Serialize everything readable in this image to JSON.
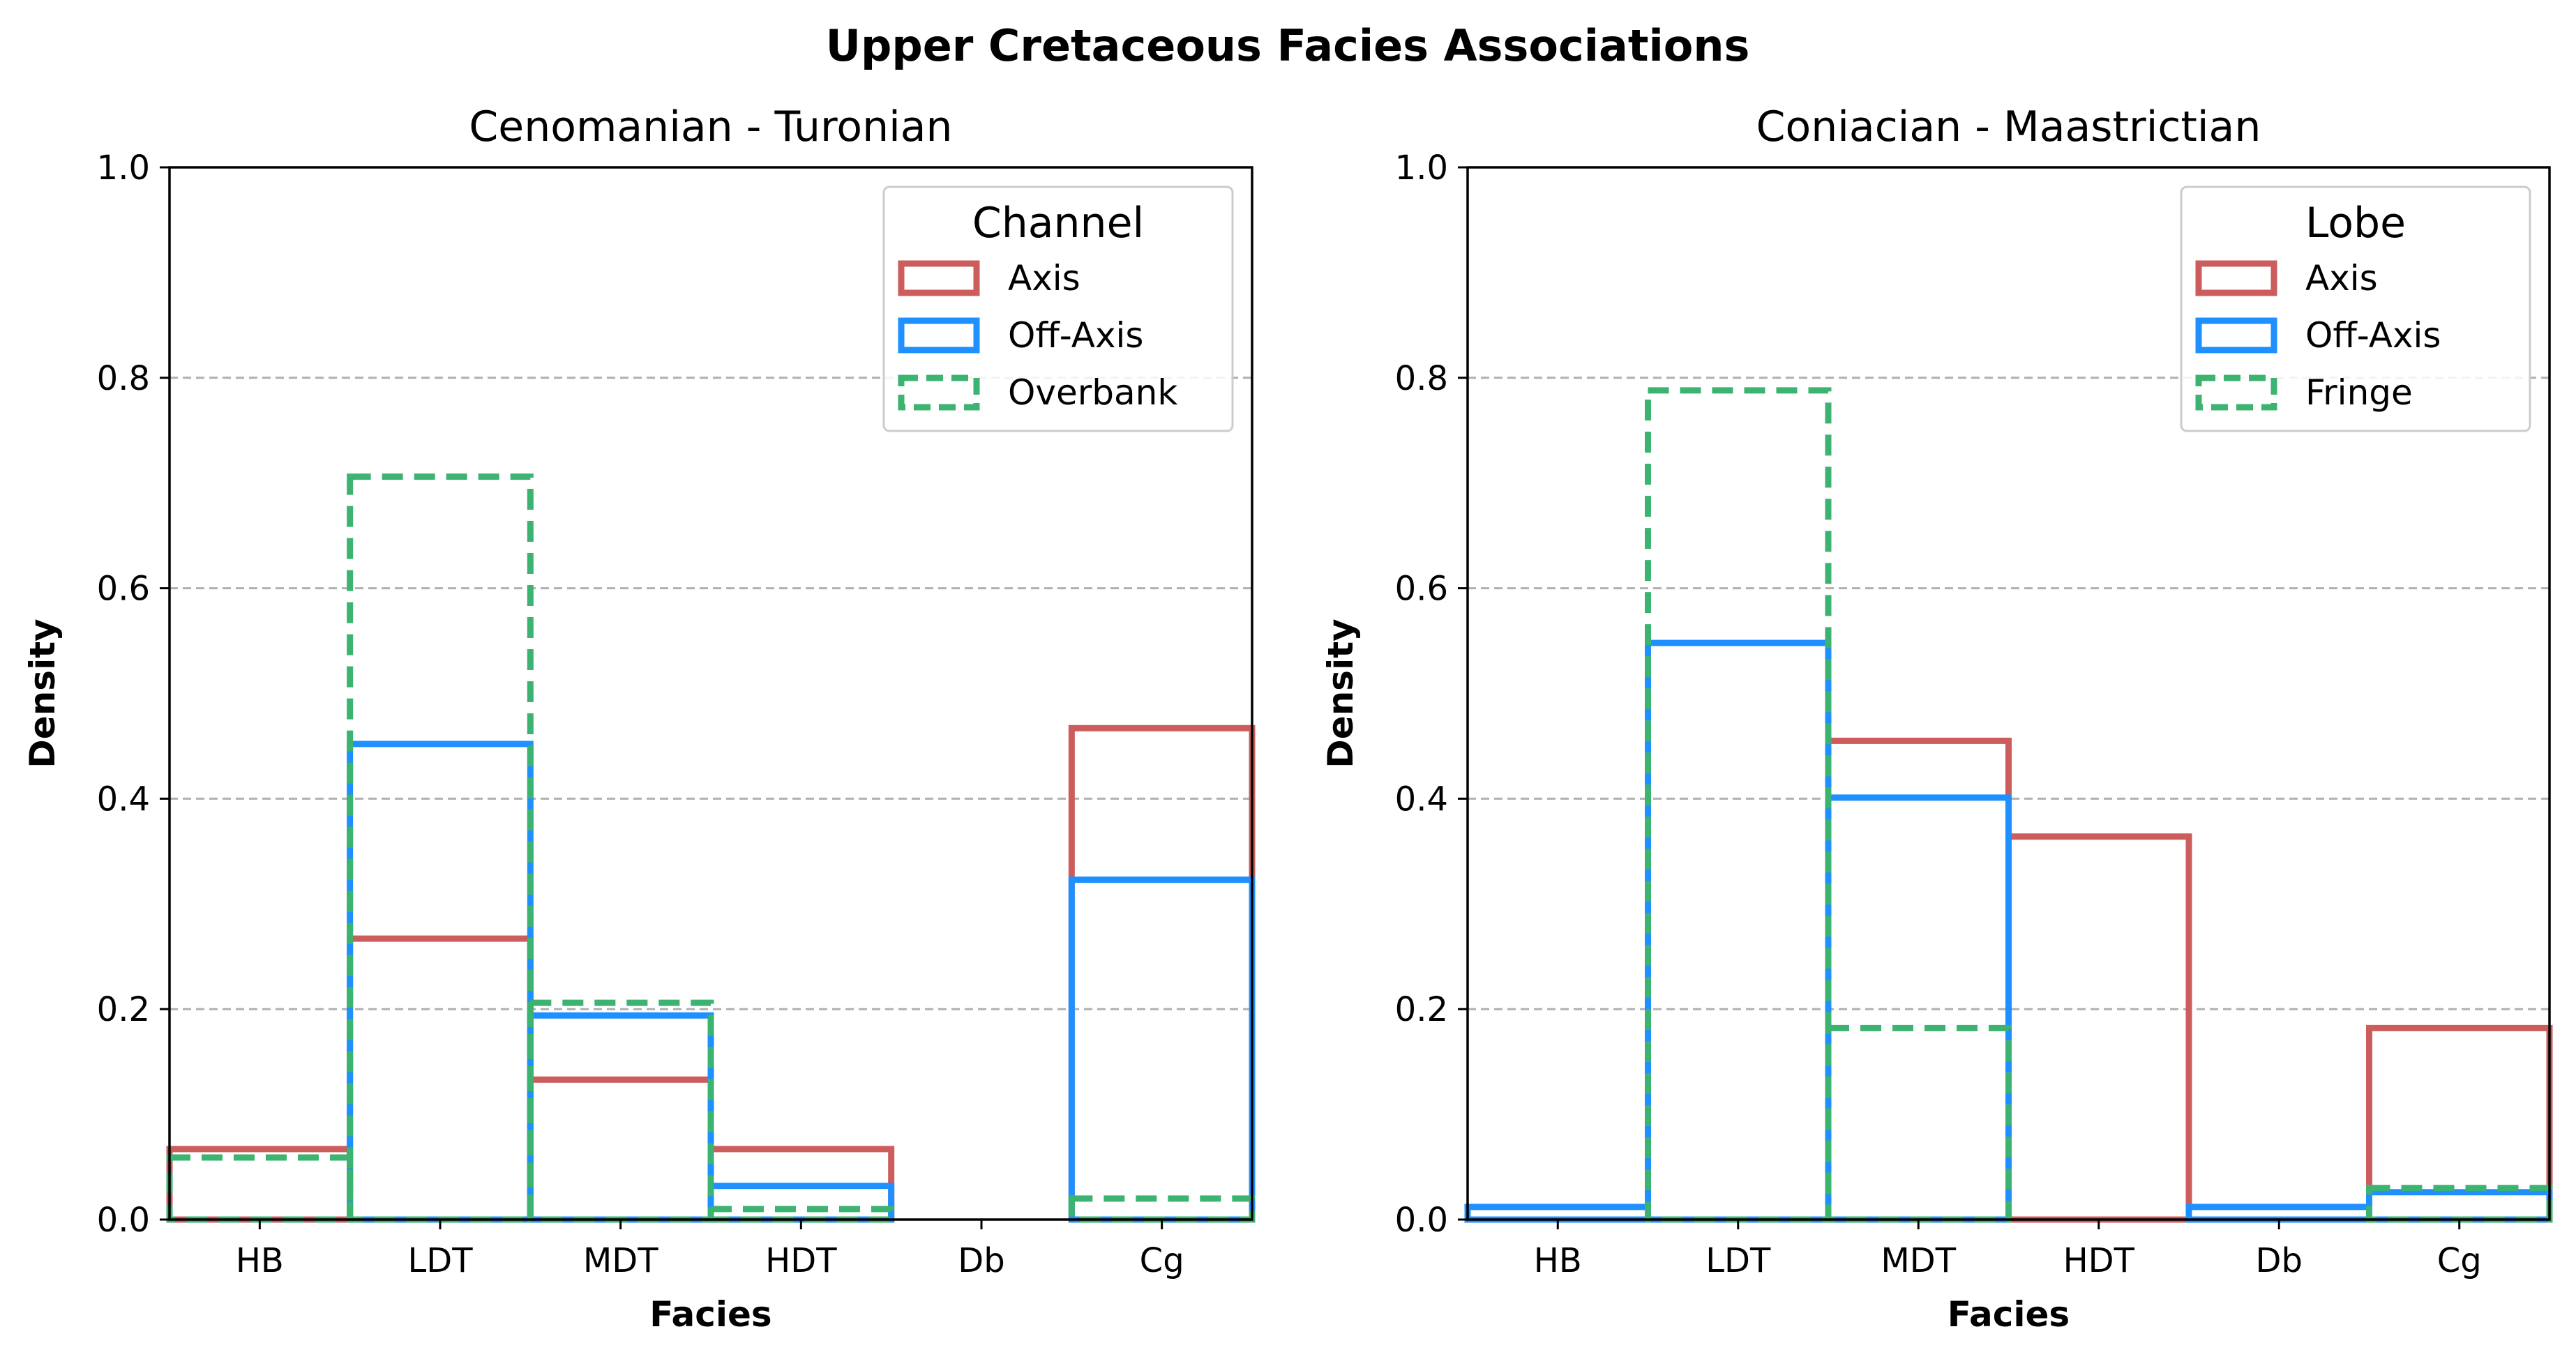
{
  "figure": {
    "title": "Upper Cretaceous Facies Associations"
  },
  "colors": {
    "axis": "#cd5c5c",
    "off_axis": "#1e90ff",
    "dashed": "#3cb371",
    "grid": "#b0b0b0"
  },
  "chart_data": [
    {
      "type": "bar",
      "subtype": "step-histogram",
      "title": "Cenomanian - Turonian",
      "xlabel": "Facies",
      "ylabel": "Density",
      "categories": [
        "HB",
        "LDT",
        "MDT",
        "HDT",
        "Db",
        "Cg"
      ],
      "ylim": [
        0,
        1.0
      ],
      "yticks": [
        "0.0",
        "0.2",
        "0.4",
        "0.6",
        "0.8",
        "1.0"
      ],
      "grid": "y dashed",
      "legend": {
        "title": "Channel",
        "position": "top-right"
      },
      "series": [
        {
          "name": "Axis",
          "color": "#cd5c5c",
          "style": "solid",
          "values": [
            0.067,
            0.267,
            0.133,
            0.067,
            0.0,
            0.467
          ]
        },
        {
          "name": "Off-Axis",
          "color": "#1e90ff",
          "style": "solid",
          "values": [
            0.0,
            0.452,
            0.194,
            0.032,
            0.0,
            0.323
          ]
        },
        {
          "name": "Overbank",
          "color": "#3cb371",
          "style": "dashed",
          "values": [
            0.059,
            0.706,
            0.206,
            0.01,
            0.0,
            0.02
          ]
        }
      ]
    },
    {
      "type": "bar",
      "subtype": "step-histogram",
      "title": "Coniacian - Maastrictian",
      "xlabel": "Facies",
      "ylabel": "Density",
      "categories": [
        "HB",
        "LDT",
        "MDT",
        "HDT",
        "Db",
        "Cg"
      ],
      "ylim": [
        0,
        1.0
      ],
      "yticks": [
        "0.0",
        "0.2",
        "0.4",
        "0.6",
        "0.8",
        "1.0"
      ],
      "grid": "y dashed",
      "legend": {
        "title": "Lobe",
        "position": "top-right"
      },
      "series": [
        {
          "name": "Axis",
          "color": "#cd5c5c",
          "style": "solid",
          "values": [
            0.0,
            0.0,
            0.455,
            0.364,
            0.0,
            0.182
          ]
        },
        {
          "name": "Off-Axis",
          "color": "#1e90ff",
          "style": "solid",
          "values": [
            0.012,
            0.548,
            0.401,
            0.0,
            0.012,
            0.026
          ]
        },
        {
          "name": "Fringe",
          "color": "#3cb371",
          "style": "dashed",
          "values": [
            0.0,
            0.788,
            0.182,
            0.0,
            0.0,
            0.03
          ]
        }
      ]
    }
  ]
}
